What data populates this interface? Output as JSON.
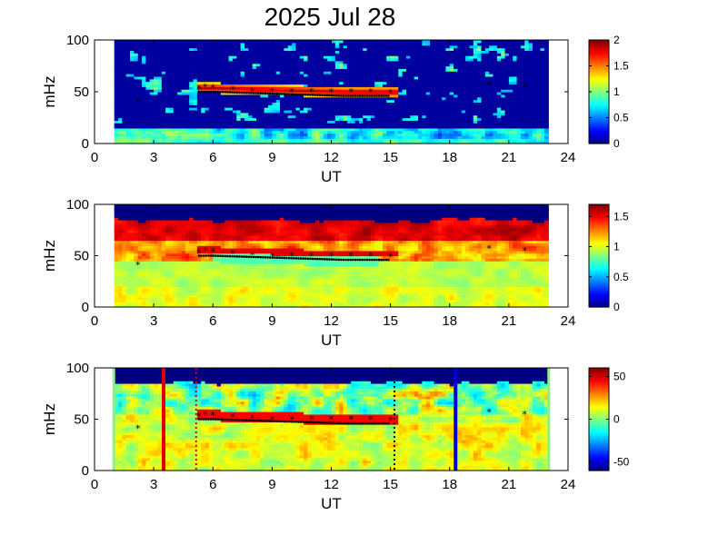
{
  "title": "2025 Jul 28",
  "chart_data": [
    {
      "type": "heatmap",
      "xlabel": "UT",
      "ylabel": "mHz",
      "xlim": [
        0,
        24
      ],
      "ylim": [
        0,
        100
      ],
      "xticks": [
        "0",
        "3",
        "6",
        "9",
        "12",
        "15",
        "18",
        "21",
        "24"
      ],
      "yticks": [
        "0",
        "50",
        "100"
      ],
      "data_x_range": [
        1,
        23
      ],
      "colorbar": {
        "colormap": "jet",
        "range": [
          0,
          2
        ],
        "ticks": [
          "0",
          "0.5",
          "1",
          "1.5",
          "2"
        ]
      },
      "markers": [
        {
          "x": 2.2,
          "y": 41
        },
        {
          "x": 5.3,
          "y": 53
        },
        {
          "x": 5.6,
          "y": 55
        },
        {
          "x": 6.0,
          "y": 54
        },
        {
          "x": 7.0,
          "y": 52
        },
        {
          "x": 8.0,
          "y": 51
        },
        {
          "x": 9.0,
          "y": 50
        },
        {
          "x": 10.0,
          "y": 50
        },
        {
          "x": 11.0,
          "y": 50
        },
        {
          "x": 12.0,
          "y": 50
        },
        {
          "x": 13.0,
          "y": 50
        },
        {
          "x": 14.0,
          "y": 50
        },
        {
          "x": 15.0,
          "y": 49
        },
        {
          "x": 20.0,
          "y": 57
        },
        {
          "x": 21.8,
          "y": 55
        }
      ]
    },
    {
      "type": "heatmap",
      "xlabel": "UT",
      "ylabel": "mHz",
      "xlim": [
        0,
        24
      ],
      "ylim": [
        0,
        100
      ],
      "xticks": [
        "0",
        "3",
        "6",
        "9",
        "12",
        "15",
        "18",
        "21",
        "24"
      ],
      "yticks": [
        "0",
        "50",
        "100"
      ],
      "data_x_range": [
        1,
        23
      ],
      "colorbar": {
        "colormap": "jet",
        "range": [
          0,
          1.7
        ],
        "ticks": [
          "0",
          "0.5",
          "1",
          "1.5"
        ]
      },
      "markers": [
        {
          "x": 2.2,
          "y": 41
        },
        {
          "x": 5.3,
          "y": 53
        },
        {
          "x": 5.6,
          "y": 55
        },
        {
          "x": 6.0,
          "y": 54
        },
        {
          "x": 7.0,
          "y": 52
        },
        {
          "x": 8.0,
          "y": 51
        },
        {
          "x": 9.0,
          "y": 50
        },
        {
          "x": 10.0,
          "y": 50
        },
        {
          "x": 11.0,
          "y": 50
        },
        {
          "x": 12.0,
          "y": 50
        },
        {
          "x": 13.0,
          "y": 50
        },
        {
          "x": 14.0,
          "y": 50
        },
        {
          "x": 15.0,
          "y": 49
        },
        {
          "x": 20.0,
          "y": 57
        },
        {
          "x": 21.8,
          "y": 55
        }
      ]
    },
    {
      "type": "heatmap",
      "xlabel": "UT",
      "ylabel": "mHz",
      "xlim": [
        0,
        24
      ],
      "ylim": [
        0,
        100
      ],
      "xticks": [
        "0",
        "3",
        "6",
        "9",
        "12",
        "15",
        "18",
        "21",
        "24"
      ],
      "yticks": [
        "0",
        "50",
        "100"
      ],
      "data_x_range": [
        1,
        23
      ],
      "colorbar": {
        "colormap": "jet",
        "range": [
          -60,
          60
        ],
        "ticks": [
          "-50",
          "0",
          "50"
        ]
      },
      "vertical_lines": [
        {
          "x": 3.5,
          "color": "#e00000",
          "style": "solid"
        },
        {
          "x": 5.15,
          "color": "#e00000",
          "style": "dotted"
        },
        {
          "x": 15.2,
          "color": "#000000",
          "style": "dotted"
        },
        {
          "x": 18.3,
          "color": "#0000d0",
          "style": "solid"
        }
      ],
      "markers": [
        {
          "x": 2.2,
          "y": 41
        },
        {
          "x": 5.3,
          "y": 53
        },
        {
          "x": 5.6,
          "y": 55
        },
        {
          "x": 6.0,
          "y": 54
        },
        {
          "x": 7.0,
          "y": 52
        },
        {
          "x": 8.0,
          "y": 51
        },
        {
          "x": 9.0,
          "y": 50
        },
        {
          "x": 10.0,
          "y": 50
        },
        {
          "x": 11.0,
          "y": 50
        },
        {
          "x": 12.0,
          "y": 50
        },
        {
          "x": 13.0,
          "y": 50
        },
        {
          "x": 14.0,
          "y": 50
        },
        {
          "x": 15.0,
          "y": 49
        },
        {
          "x": 20.0,
          "y": 57
        },
        {
          "x": 21.8,
          "y": 55
        }
      ]
    }
  ]
}
